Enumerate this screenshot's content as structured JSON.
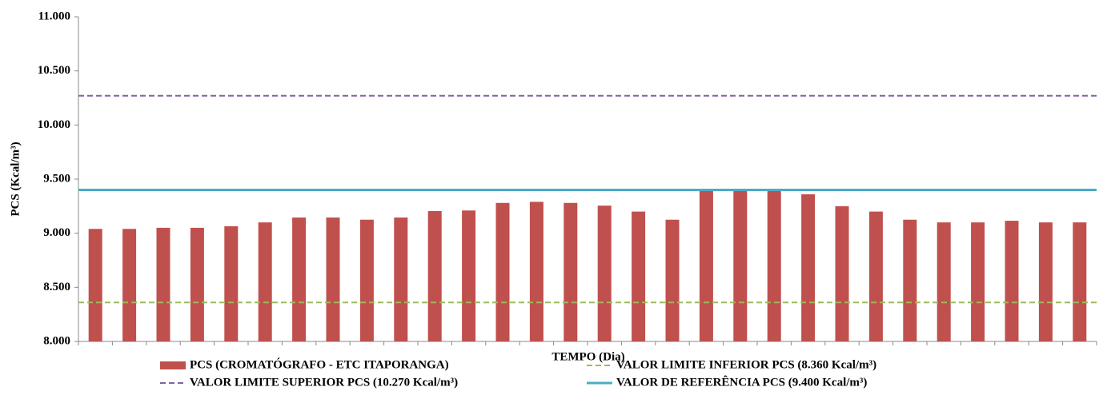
{
  "chart_data": {
    "type": "bar",
    "y_label": "PCS (Kcal/m³)",
    "x_label": "TEMPO (Dia)",
    "categories": [
      null,
      null,
      null,
      null,
      null,
      null,
      null,
      null,
      null,
      null,
      null,
      null,
      null,
      null,
      null,
      null,
      null,
      null,
      null,
      null,
      null,
      null,
      null,
      null,
      null,
      null,
      null,
      null,
      null,
      null
    ],
    "series": [
      {
        "name": "PCS (CROMATÓGRAFO - ETC ITAPORANGA)",
        "color": "#c0504d",
        "values": [
          9040,
          9040,
          9050,
          9050,
          9065,
          9100,
          9145,
          9145,
          9125,
          9145,
          9205,
          9210,
          9280,
          9290,
          9280,
          9255,
          9200,
          9125,
          9400,
          9400,
          9400,
          9360,
          9250,
          9200,
          9125,
          9100,
          9100,
          9115,
          9100,
          9100
        ]
      }
    ],
    "reference_lines": [
      {
        "name": "VALOR LIMITE INFERIOR PCS (8.360 Kcal/m³)",
        "value": 8360,
        "color": "#9bbb59",
        "dashed": true
      },
      {
        "name": "VALOR LIMITE SUPERIOR PCS (10.270 Kcal/m³)",
        "value": 10270,
        "color": "#8064a2",
        "dashed": true
      },
      {
        "name": "VALOR DE REFERÊNCIA PCS (9.400 Kcal/m³)",
        "value": 9400,
        "color": "#4bacc6",
        "dashed": false
      }
    ],
    "ylim": [
      8000,
      11000
    ],
    "yticks": [
      {
        "value": 8000,
        "label": "8.000"
      },
      {
        "value": 8500,
        "label": "8.500"
      },
      {
        "value": 9000,
        "label": "9.000"
      },
      {
        "value": 9500,
        "label": "9.500"
      },
      {
        "value": 10000,
        "label": "10.000"
      },
      {
        "value": 10500,
        "label": "10.500"
      },
      {
        "value": 11000,
        "label": "11.000"
      }
    ],
    "grid": false,
    "legend": "bottom"
  }
}
